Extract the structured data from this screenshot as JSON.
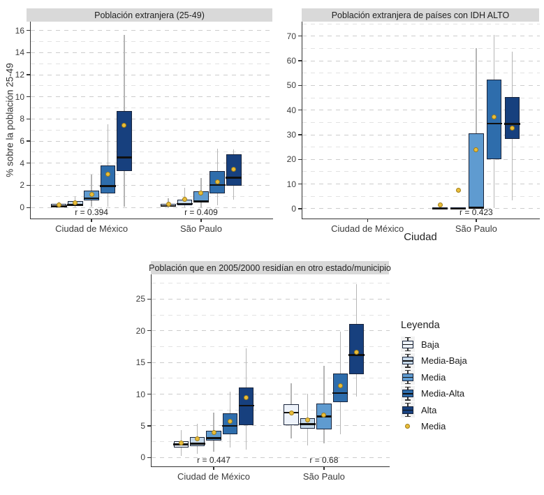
{
  "colors": {
    "levels": [
      "#eef3fb",
      "#c6d9ea",
      "#5f9bd0",
      "#2e6dac",
      "#17407e"
    ],
    "mean_fill": "#e9bd3a",
    "mean_border": "#a07d17",
    "box_border": "#18233a",
    "median": "#101010",
    "whisker": "#b5b5b5",
    "strip_bg": "#d9d9d9",
    "grid_major": "#cccccc",
    "grid_minor": "#e2e2e2",
    "axis": "#333333"
  },
  "legend": {
    "title": "Leyenda",
    "items": [
      {
        "label": "Baja",
        "type": "box",
        "color": "#eef3fb"
      },
      {
        "label": "Media-Baja",
        "type": "box",
        "color": "#c6d9ea"
      },
      {
        "label": "Media",
        "type": "box",
        "color": "#5f9bd0"
      },
      {
        "label": "Media-Alta",
        "type": "box",
        "color": "#2e6dac"
      },
      {
        "label": "Alta",
        "type": "box",
        "color": "#17407e"
      },
      {
        "label": "Media",
        "type": "dot",
        "color": "#e9bd3a"
      }
    ]
  },
  "chart_data": [
    {
      "type": "boxplot",
      "title": "Población extranjera (25-49)",
      "ylabel": "% sobre la población 25-49",
      "xlabel": "",
      "ylim": [
        -1.0,
        16.8
      ],
      "yticks": [
        0,
        2,
        4,
        6,
        8,
        10,
        12,
        14,
        16
      ],
      "categories": [
        "Ciudad de México",
        "São Paulo"
      ],
      "cat_pos": [
        0.251,
        0.703
      ],
      "dodge": 0.0675,
      "box_width": 0.063,
      "annotations": [
        {
          "text": "r = 0.394",
          "cat": 0
        },
        {
          "text": "r = 0.409",
          "cat": 1
        }
      ],
      "levels": [
        "Baja",
        "Media-Baja",
        "Media",
        "Media-Alta",
        "Alta"
      ],
      "groups": [
        {
          "category": "Ciudad de México",
          "boxes": [
            {
              "level": "Baja",
              "whisker_low": 0,
              "q1": 0.05,
              "median": 0.15,
              "q3": 0.3,
              "whisker_high": 0.5,
              "mean": 0.2
            },
            {
              "level": "Media-Baja",
              "whisker_low": 0,
              "q1": 0.15,
              "median": 0.3,
              "q3": 0.55,
              "whisker_high": 1.05,
              "mean": 0.45
            },
            {
              "level": "Media",
              "whisker_low": 0.05,
              "q1": 0.65,
              "median": 0.9,
              "q3": 1.5,
              "whisker_high": 3.0,
              "mean": 1.2
            },
            {
              "level": "Media-Alta",
              "whisker_low": 0.05,
              "q1": 1.25,
              "median": 2.0,
              "q3": 3.8,
              "whisker_high": 7.5,
              "mean": 3.0
            },
            {
              "level": "Alta",
              "whisker_low": 0.1,
              "q1": 3.3,
              "median": 4.6,
              "q3": 8.7,
              "whisker_high": 15.6,
              "mean": 7.4
            }
          ]
        },
        {
          "category": "São Paulo",
          "boxes": [
            {
              "level": "Baja",
              "whisker_low": 0,
              "q1": 0.05,
              "median": 0.2,
              "q3": 0.35,
              "whisker_high": 0.85,
              "mean": 0.3
            },
            {
              "level": "Media-Baja",
              "whisker_low": 0,
              "q1": 0.2,
              "median": 0.4,
              "q3": 0.7,
              "whisker_high": 1.8,
              "mean": 0.75
            },
            {
              "level": "Media",
              "whisker_low": 0,
              "q1": 0.45,
              "median": 0.6,
              "q3": 1.45,
              "whisker_high": 2.65,
              "mean": 1.3
            },
            {
              "level": "Media-Alta",
              "whisker_low": 0.2,
              "q1": 1.3,
              "median": 2.1,
              "q3": 3.3,
              "whisker_high": 5.3,
              "mean": 2.3
            },
            {
              "level": "Alta",
              "whisker_low": 0.7,
              "q1": 1.95,
              "median": 2.75,
              "q3": 4.8,
              "whisker_high": 5.25,
              "mean": 3.45
            }
          ]
        }
      ]
    },
    {
      "type": "boxplot",
      "title": "Población extranjera de países con IDH ALTO",
      "ylabel": "",
      "xlabel": "Ciudad",
      "ylim": [
        -4.0,
        75.9
      ],
      "yticks": [
        0,
        10,
        20,
        30,
        40,
        50,
        60,
        70
      ],
      "categories": [
        "Ciudad de México",
        "São Paulo"
      ],
      "cat_pos": [
        0.274,
        0.732
      ],
      "dodge": 0.076,
      "box_width": 0.063,
      "annotations": [
        {
          "text": "r = 0.423",
          "cat": 1
        }
      ],
      "levels": [
        "Baja",
        "Media-Baja",
        "Media",
        "Media-Alta",
        "Alta"
      ],
      "groups": [
        {
          "category": "Ciudad de México",
          "boxes": [
            null,
            null,
            null,
            null,
            null
          ]
        },
        {
          "category": "São Paulo",
          "boxes": [
            {
              "level": "Baja",
              "whisker_low": 0,
              "q1": 0,
              "median": 0.25,
              "q3": 0.5,
              "whisker_high": 0.6,
              "mean": 1.5
            },
            {
              "level": "Media-Baja",
              "whisker_low": 0,
              "q1": 0,
              "median": 0.25,
              "q3": 0.5,
              "whisker_high": 0.6,
              "mean": 7.5
            },
            {
              "level": "Media",
              "whisker_low": 0,
              "q1": 0.3,
              "median": 0.7,
              "q3": 30.5,
              "whisker_high": 65,
              "mean": 24
            },
            {
              "level": "Media-Alta",
              "whisker_low": 0.2,
              "q1": 20,
              "median": 34.8,
              "q3": 52.3,
              "whisker_high": 70.5,
              "mean": 37.3
            },
            {
              "level": "Alta",
              "whisker_low": 3.5,
              "q1": 28.3,
              "median": 34.7,
              "q3": 45.2,
              "whisker_high": 63.7,
              "mean": 32.6
            }
          ]
        }
      ]
    },
    {
      "type": "boxplot",
      "title": "Población que en 2005/2000 residían en otro estado/municipio",
      "ylabel": "",
      "xlabel": "",
      "ylim": [
        -1.4,
        28.9
      ],
      "yticks": [
        0,
        5,
        10,
        15,
        20,
        25
      ],
      "categories": [
        "Ciudad de México",
        "São Paulo"
      ],
      "cat_pos": [
        0.261,
        0.724
      ],
      "dodge": 0.0685,
      "box_width": 0.063,
      "annotations": [
        {
          "text": "r = 0.447",
          "cat": 0
        },
        {
          "text": "r = 0.68",
          "cat": 1
        }
      ],
      "levels": [
        "Baja",
        "Media-Baja",
        "Media",
        "Media-Alta",
        "Alta"
      ],
      "groups": [
        {
          "category": "Ciudad de México",
          "boxes": [
            {
              "level": "Baja",
              "whisker_low": 0.2,
              "q1": 1.6,
              "median": 2.2,
              "q3": 2.6,
              "whisker_high": 4.3,
              "mean": 2.3
            },
            {
              "level": "Media-Baja",
              "whisker_low": 0.6,
              "q1": 1.8,
              "median": 2.3,
              "q3": 3.25,
              "whisker_high": 5.3,
              "mean": 3.0
            },
            {
              "level": "Media",
              "whisker_low": 0.95,
              "q1": 2.7,
              "median": 3.15,
              "q3": 4.25,
              "whisker_high": 7.1,
              "mean": 3.9
            },
            {
              "level": "Media-Alta",
              "whisker_low": 1.6,
              "q1": 3.7,
              "median": 5.1,
              "q3": 6.95,
              "whisker_high": 10.4,
              "mean": 5.75
            },
            {
              "level": "Alta",
              "whisker_low": 1.25,
              "q1": 5.1,
              "median": 8.3,
              "q3": 11.0,
              "whisker_high": 17.2,
              "mean": 9.45
            }
          ]
        },
        {
          "category": "São Paulo",
          "boxes": [
            {
              "level": "Baja",
              "whisker_low": 3.0,
              "q1": 5.1,
              "median": 7.2,
              "q3": 8.4,
              "whisker_high": 11.7,
              "mean": 7.0
            },
            {
              "level": "Media-Baja",
              "whisker_low": 1.9,
              "q1": 4.6,
              "median": 5.35,
              "q3": 6.2,
              "whisker_high": 10.1,
              "mean": 5.95
            },
            {
              "level": "Media",
              "whisker_low": 2.2,
              "q1": 4.4,
              "median": 6.6,
              "q3": 8.5,
              "whisker_high": 14.5,
              "mean": 6.7
            },
            {
              "level": "Media-Alta",
              "whisker_low": 3.7,
              "q1": 8.7,
              "median": 10.3,
              "q3": 13.3,
              "whisker_high": 19.9,
              "mean": 11.3
            },
            {
              "level": "Alta",
              "whisker_low": 9.6,
              "q1": 13.1,
              "median": 16.3,
              "q3": 21.1,
              "whisker_high": 27.4,
              "mean": 16.6
            }
          ]
        }
      ]
    }
  ]
}
